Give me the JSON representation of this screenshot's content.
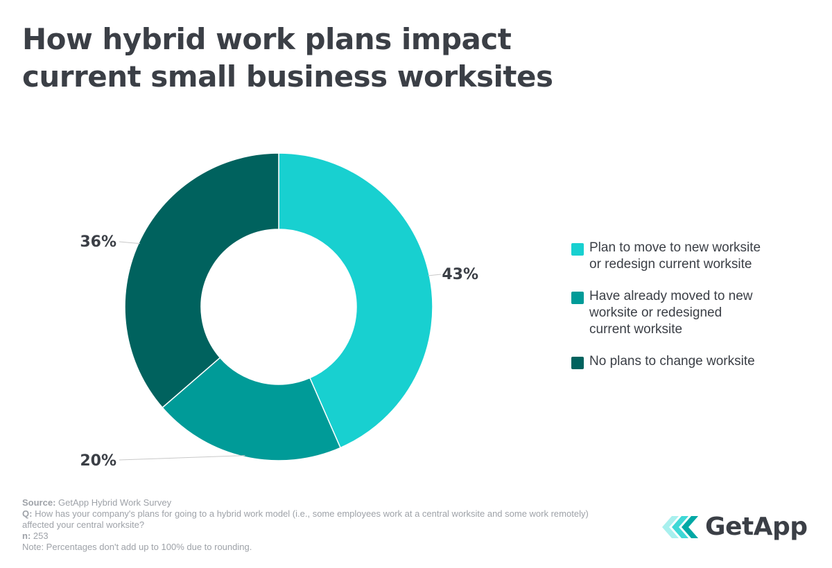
{
  "title_line1": "How hybrid work plans impact",
  "title_line2": "current small business worksites",
  "chart_data": {
    "type": "pie",
    "donut": true,
    "slices": [
      {
        "label": "Plan to move to new worksite or redesign current worksite",
        "value": 43,
        "display": "43%",
        "color": "#18d0d0"
      },
      {
        "label": "Have already moved to new worksite or redesigned current worksite",
        "value": 20,
        "display": "20%",
        "color": "#009b98"
      },
      {
        "label": "No plans to change worksite",
        "value": 36,
        "display": "36%",
        "color": "#00625e"
      }
    ],
    "legend_position": "right"
  },
  "legend": [
    {
      "lines": [
        "Plan to move to new worksite",
        "or redesign current worksite"
      ],
      "color": "#18d0d0"
    },
    {
      "lines": [
        "Have already moved to new",
        "worksite or redesigned",
        "current worksite"
      ],
      "color": "#009b98"
    },
    {
      "lines": [
        "No plans to change worksite"
      ],
      "color": "#00625e"
    }
  ],
  "footer": {
    "source_label": "Source:",
    "source_text": "GetApp Hybrid Work Survey",
    "q_label": "Q:",
    "q_text": "How has your company's plans for going to a hybrid work model (i.e., some employees work at a central worksite and some work remotely) affected your central worksite?",
    "n_label": "n:",
    "n_text": "253",
    "note": "Note: Percentages don't add up to 100% due to rounding."
  },
  "logo": {
    "text": "GetApp",
    "icon": "getapp-chevrons-icon"
  }
}
